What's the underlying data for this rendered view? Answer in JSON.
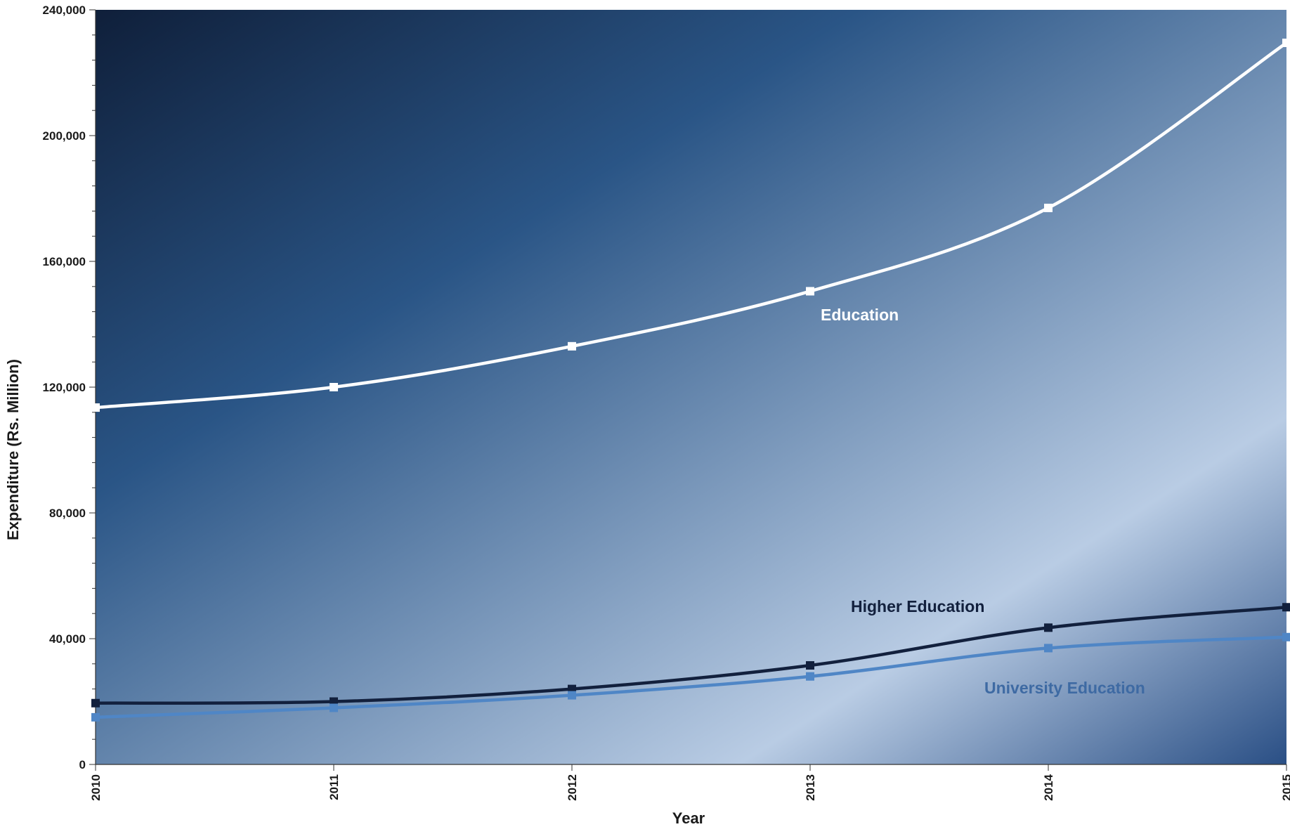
{
  "chart_data": {
    "type": "line",
    "title": "",
    "xlabel": "Year",
    "ylabel": "Expenditure (Rs. Million)",
    "categories": [
      "2010",
      "2011",
      "2012",
      "2013",
      "2014",
      "2015"
    ],
    "ylim": [
      0,
      240000
    ],
    "yticks": [
      0,
      40000,
      80000,
      120000,
      160000,
      200000,
      240000
    ],
    "ytick_labels": [
      "0",
      "40,000",
      "80,000",
      "120,000",
      "160,000",
      "200,000",
      "240,000"
    ],
    "grid": false,
    "legend": "inline labels",
    "series": [
      {
        "name": "Education",
        "values": [
          113500,
          120000,
          133000,
          150500,
          177000,
          229500
        ],
        "color": "#ffffff"
      },
      {
        "name": "Higher Education",
        "values": [
          19500,
          20000,
          24000,
          31500,
          43500,
          50000
        ],
        "color": "#12203d"
      },
      {
        "name": "University Education",
        "values": [
          15000,
          18000,
          22000,
          28000,
          37000,
          40500
        ],
        "color": "#4f86c6"
      }
    ],
    "label_colors": [
      "#ffffff",
      "#12203d",
      "#3e6aa3"
    ],
    "background_colors": [
      "#0f1f3a",
      "#2a5586",
      "#b9cce4",
      "#2a4f85"
    ]
  }
}
